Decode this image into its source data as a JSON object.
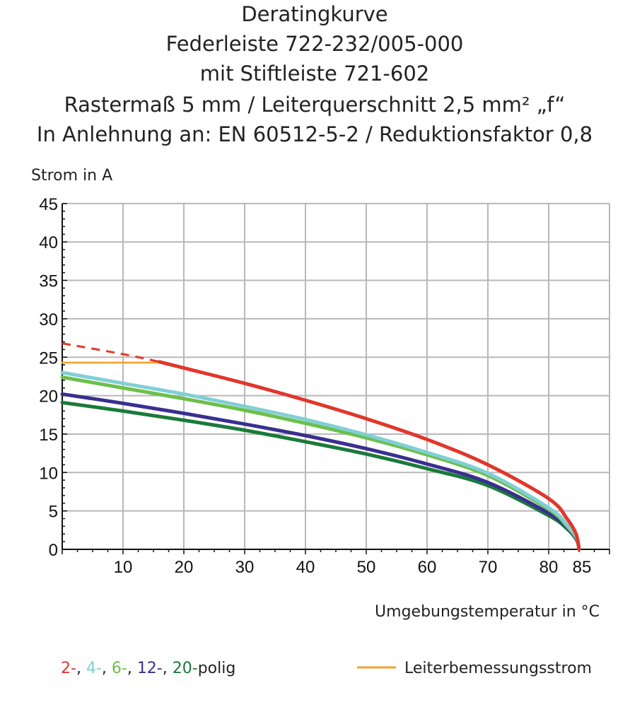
{
  "chart_data": {
    "type": "line",
    "title": [
      "Deratingkurve",
      "Federleiste 722-232/005-000",
      "mit Stiftleiste 721-602",
      "Rastermaß 5 mm / Leiterquerschnitt 2,5 mm² „f“",
      "In Anlehnung an: EN 60512-5-2 / Reduktionsfaktor 0,8"
    ],
    "ylabel": "Strom in A",
    "xlabel": "Umgebungstemperatur in °C",
    "xlim": [
      0,
      90
    ],
    "ylim": [
      0,
      45
    ],
    "grid": true,
    "xticks": [
      10,
      20,
      30,
      40,
      50,
      60,
      70,
      80,
      85
    ],
    "yticks": [
      0,
      5,
      10,
      15,
      20,
      25,
      30,
      35,
      40,
      45
    ],
    "series": [
      {
        "key": "2",
        "color": "#e2362b",
        "dashed_until": 16,
        "points": [
          [
            0,
            26.8
          ],
          [
            10,
            25.4
          ],
          [
            16,
            24.4
          ],
          [
            20,
            23.6
          ],
          [
            30,
            21.6
          ],
          [
            40,
            19.4
          ],
          [
            50,
            17.0
          ],
          [
            60,
            14.3
          ],
          [
            70,
            11.0
          ],
          [
            80,
            6.6
          ],
          [
            83,
            4.0
          ],
          [
            84.5,
            2.0
          ],
          [
            85,
            0
          ]
        ]
      },
      {
        "key": "4",
        "color": "#80cfd6",
        "points": [
          [
            0,
            23.0
          ],
          [
            10,
            21.6
          ],
          [
            20,
            20.2
          ],
          [
            30,
            18.6
          ],
          [
            40,
            16.9
          ],
          [
            50,
            14.9
          ],
          [
            60,
            12.6
          ],
          [
            70,
            9.9
          ],
          [
            80,
            5.4
          ],
          [
            83,
            3.2
          ],
          [
            84.6,
            1.5
          ],
          [
            85,
            0
          ]
        ]
      },
      {
        "key": "6",
        "color": "#6dbf4b",
        "points": [
          [
            0,
            22.4
          ],
          [
            10,
            21.0
          ],
          [
            20,
            19.6
          ],
          [
            30,
            18.1
          ],
          [
            40,
            16.4
          ],
          [
            50,
            14.5
          ],
          [
            60,
            12.3
          ],
          [
            70,
            9.6
          ],
          [
            80,
            5.2
          ],
          [
            83,
            3.0
          ],
          [
            84.6,
            1.4
          ],
          [
            85,
            0
          ]
        ]
      },
      {
        "key": "12",
        "color": "#3a2f8e",
        "points": [
          [
            0,
            20.2
          ],
          [
            10,
            19.0
          ],
          [
            20,
            17.7
          ],
          [
            30,
            16.3
          ],
          [
            40,
            14.8
          ],
          [
            50,
            13.1
          ],
          [
            60,
            11.1
          ],
          [
            70,
            8.7
          ],
          [
            80,
            4.7
          ],
          [
            83,
            2.8
          ],
          [
            84.6,
            1.3
          ],
          [
            85,
            0
          ]
        ]
      },
      {
        "key": "20",
        "color": "#1a7a3a",
        "points": [
          [
            0,
            19.1
          ],
          [
            10,
            18.0
          ],
          [
            20,
            16.8
          ],
          [
            30,
            15.5
          ],
          [
            40,
            14.0
          ],
          [
            50,
            12.4
          ],
          [
            60,
            10.5
          ],
          [
            70,
            8.3
          ],
          [
            80,
            4.4
          ],
          [
            83,
            2.7
          ],
          [
            84.6,
            1.2
          ],
          [
            85,
            0
          ]
        ]
      },
      {
        "key": "Leiterbemessungsstrom",
        "color": "#f4a030",
        "points": [
          [
            0,
            24.3
          ],
          [
            16,
            24.3
          ]
        ]
      }
    ],
    "legend": {
      "placement": "bottom",
      "poles": [
        {
          "text": "2-",
          "color": "#e2362b"
        },
        {
          "text": ", ",
          "color": "#222222"
        },
        {
          "text": "4-",
          "color": "#80cfd6"
        },
        {
          "text": ", ",
          "color": "#222222"
        },
        {
          "text": "6-",
          "color": "#6dbf4b"
        },
        {
          "text": ", ",
          "color": "#222222"
        },
        {
          "text": "12-",
          "color": "#3a2f8e"
        },
        {
          "text": ", ",
          "color": "#222222"
        },
        {
          "text": "20-",
          "color": "#1a7a3a"
        },
        {
          "text": "polig",
          "color": "#222222"
        }
      ],
      "rated_current": "Leiterbemessungsstrom"
    }
  }
}
